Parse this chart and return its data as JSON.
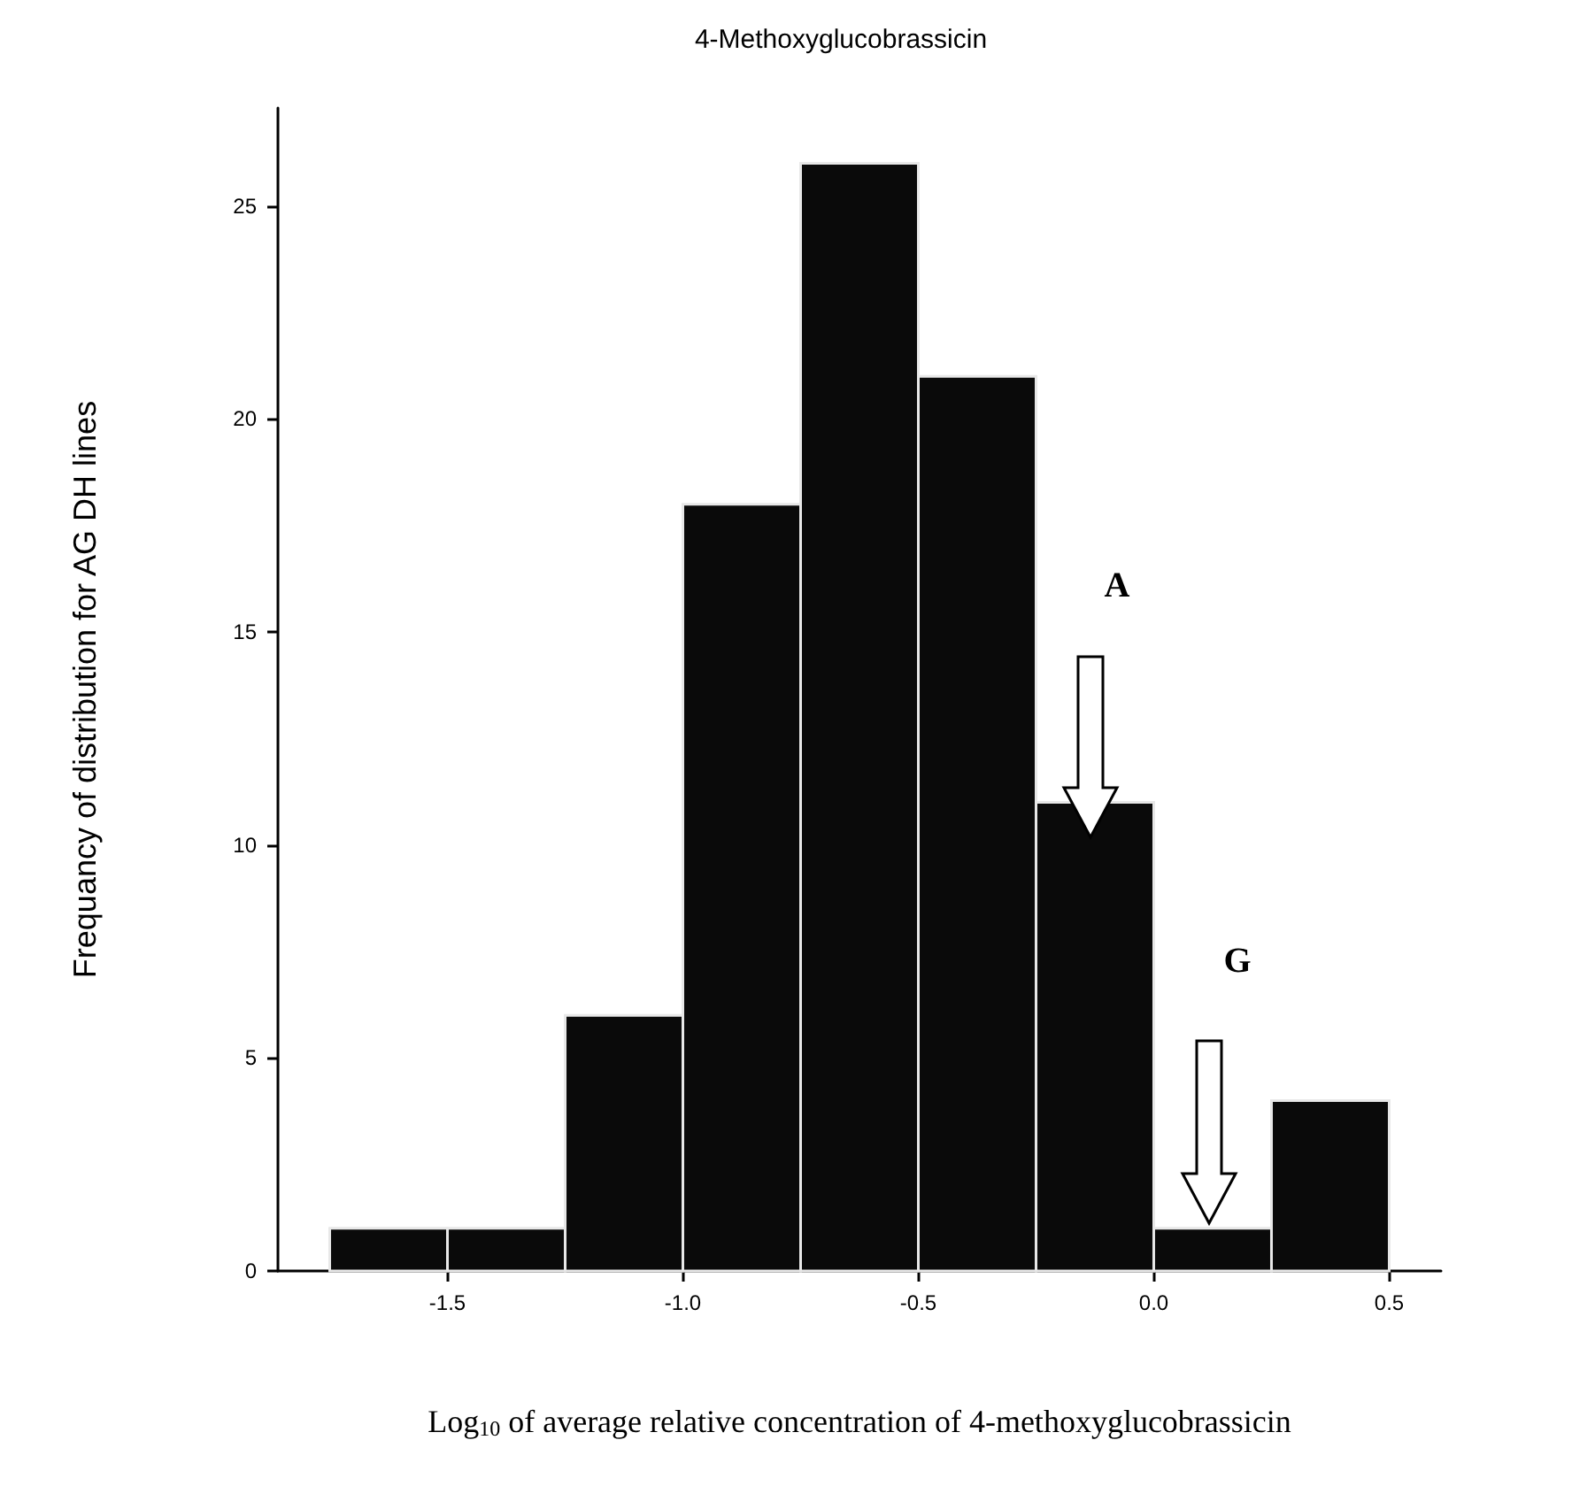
{
  "chart_data": {
    "type": "histogram",
    "title": "4-Methoxyglucobrassicin",
    "xlabel": "Log$_{10}$ of average relative concentration of 4-methoxyglucobrassicin",
    "ylabel": "Frequancy of distribution for AG DH lines",
    "bins": [
      -1.75,
      -1.5,
      -1.25,
      -1.0,
      -0.75,
      -0.5,
      -0.25,
      0.0,
      0.25,
      0.5
    ],
    "values": [
      1,
      1,
      6,
      18,
      26,
      21,
      11,
      1,
      4
    ],
    "color": "#0a0a0a",
    "xlim": [
      -1.86,
      0.61
    ],
    "xticks": [
      -1.5,
      {
        "value": -1,
        "label": "-1.0"
      },
      -0.5,
      {
        "value": 0,
        "label": "0.0"
      },
      0.5
    ],
    "ylim": [
      0,
      27.3
    ],
    "yticks": [
      0,
      5,
      10,
      15,
      20,
      25
    ],
    "grid": false,
    "annotations": [
      "A",
      "G"
    ]
  }
}
